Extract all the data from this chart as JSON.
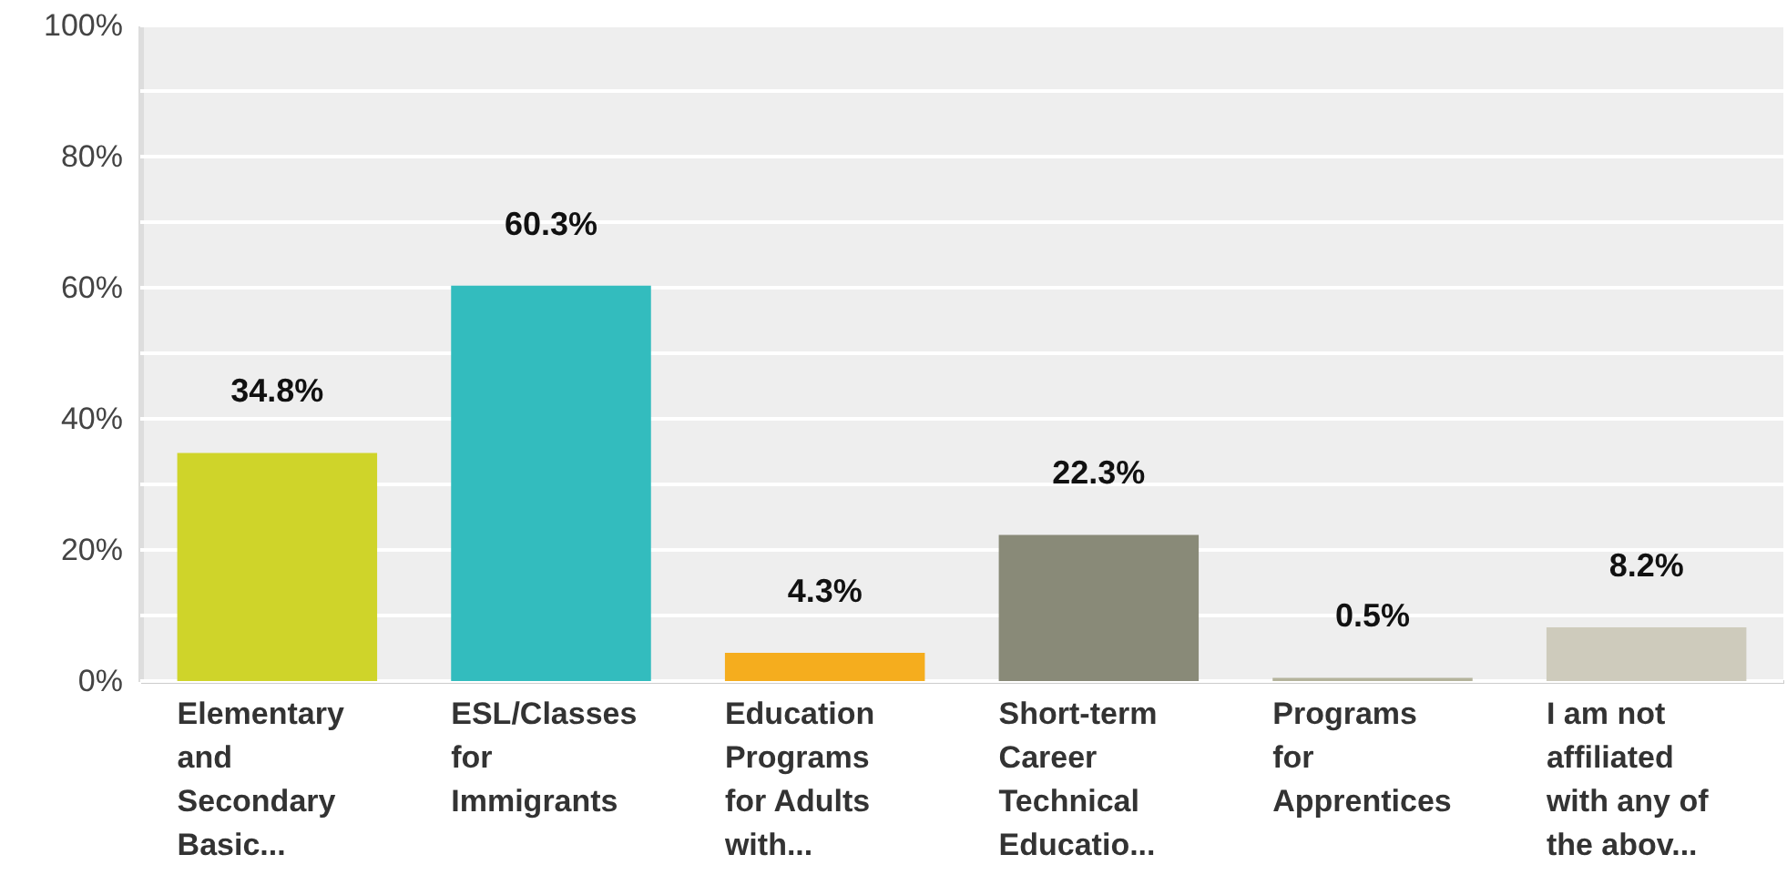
{
  "chart_data": {
    "type": "bar",
    "categories": [
      "Elementary and Secondary Basic...",
      "ESL/Classes for Immigrants",
      "Education Programs for Adults with...",
      "Short-term Career Technical Educatio...",
      "Programs for Apprentices",
      "I am not affiliated with any of the abov..."
    ],
    "values": [
      34.8,
      60.3,
      4.3,
      22.3,
      0.5,
      8.2
    ],
    "colors": [
      "#cfd42a",
      "#33bcbe",
      "#f5ad1e",
      "#898a78",
      "#b4b39c",
      "#cecbbc"
    ],
    "value_labels": [
      "34.8%",
      "60.3%",
      "4.3%",
      "22.3%",
      "0.5%",
      "8.2%"
    ],
    "ylim": [
      0,
      100
    ],
    "yticks": [
      {
        "value": 0,
        "label": "0%"
      },
      {
        "value": 10,
        "label": null
      },
      {
        "value": 20,
        "label": "20%"
      },
      {
        "value": 30,
        "label": null
      },
      {
        "value": 40,
        "label": "40%"
      },
      {
        "value": 50,
        "label": null
      },
      {
        "value": 60,
        "label": "60%"
      },
      {
        "value": 70,
        "label": null
      },
      {
        "value": 80,
        "label": "80%"
      },
      {
        "value": 90,
        "label": null
      },
      {
        "value": 100,
        "label": "100%"
      }
    ],
    "grid": true
  }
}
